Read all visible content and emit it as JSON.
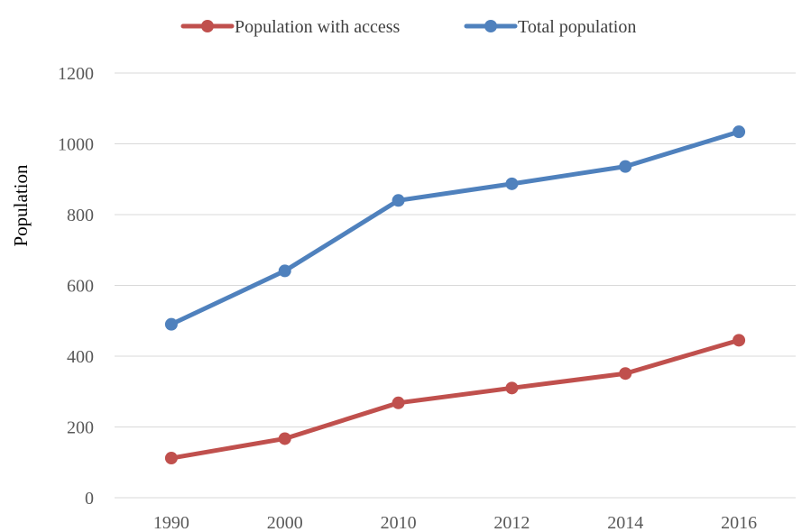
{
  "chart_data": {
    "type": "line",
    "title": "",
    "xlabel": "",
    "ylabel": "Population",
    "categories": [
      "1990",
      "2000",
      "2010",
      "2012",
      "2014",
      "2016"
    ],
    "ylim": [
      0,
      1200
    ],
    "yticks": [
      "0",
      "200",
      "400",
      "600",
      "800",
      "1000",
      "1200"
    ],
    "grid": "horizontal",
    "legend_position": "top-center",
    "series": [
      {
        "name": "Population with access",
        "color": "#c0504d",
        "values": [
          112,
          167,
          268,
          310,
          351,
          445
        ]
      },
      {
        "name": "Total population",
        "color": "#4f81bd",
        "values": [
          490,
          641,
          840,
          887,
          936,
          1034
        ]
      }
    ]
  }
}
